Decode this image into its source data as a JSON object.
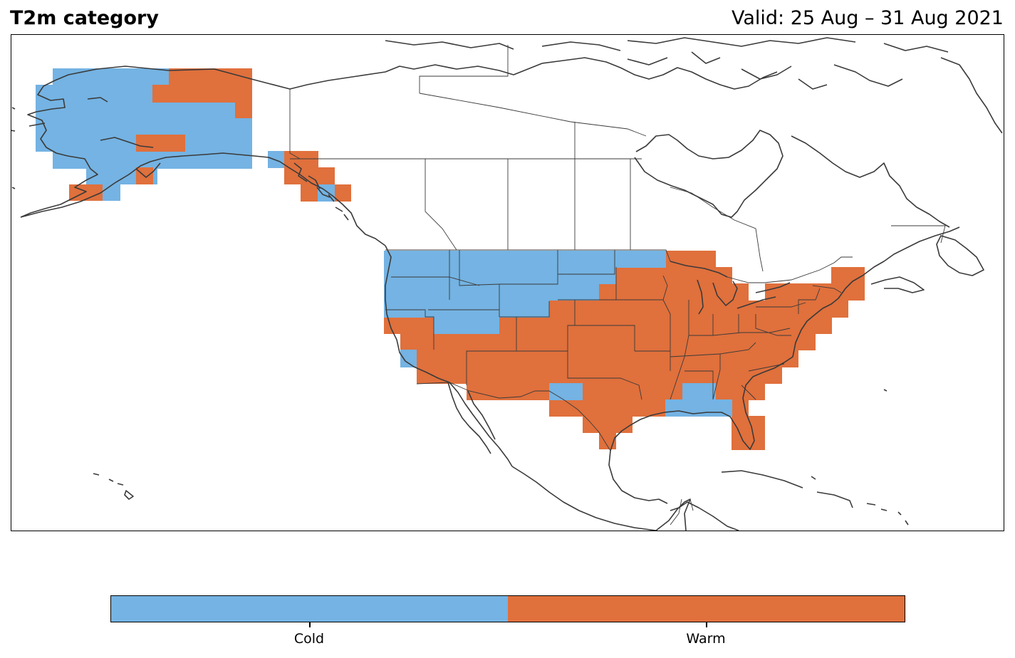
{
  "title": "T2m category",
  "valid_label": "Valid: 25 Aug – 31 Aug 2021",
  "colors": {
    "cold": "#74b3e3",
    "warm": "#e0703c",
    "coast": "#3a3a3a",
    "border": "#3a3a3a"
  },
  "legend": {
    "categories": [
      {
        "name": "cold",
        "label": "Cold"
      },
      {
        "name": "warm",
        "label": "Warm"
      }
    ]
  },
  "map": {
    "region": "North America",
    "cell_anomalies": [
      {
        "area": "Alaska interior and west",
        "category": "cold"
      },
      {
        "area": "Alaska north slope east",
        "category": "warm"
      },
      {
        "area": "Alaska southwest coast",
        "category": "warm"
      },
      {
        "area": "Southeast Alaska panhandle",
        "category": "warm"
      },
      {
        "area": "US Pacific Northwest and northern Rockies",
        "category": "cold"
      },
      {
        "area": "Northern Great Plains",
        "category": "cold"
      },
      {
        "area": "Southern California coast",
        "category": "cold"
      },
      {
        "area": "Southwest and southern Plains",
        "category": "warm"
      },
      {
        "area": "Central and eastern US",
        "category": "warm"
      },
      {
        "area": "Northeast US and New England",
        "category": "warm"
      },
      {
        "area": "Gulf Coast Mississippi–Alabama",
        "category": "cold"
      },
      {
        "area": "Florida peninsula",
        "category": "warm"
      }
    ]
  }
}
